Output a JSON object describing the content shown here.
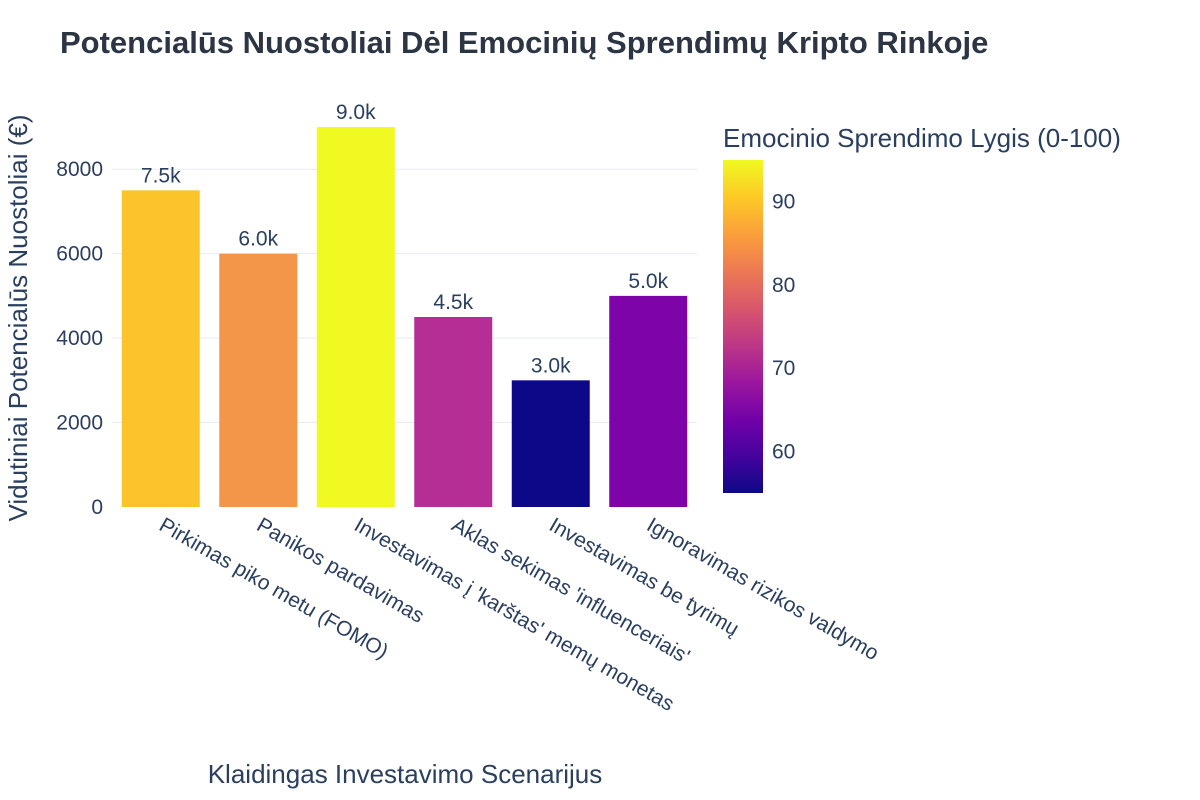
{
  "chart_data": {
    "type": "bar",
    "title": "Potencialūs Nuostoliai Dėl Emocinių Sprendimų Kripto Rinkoje",
    "xlabel": "Klaidingas Investavimo Scenarijus",
    "ylabel": "Vidutiniai Potencialūs Nuostoliai (€)",
    "ylim": [
      0,
      9000
    ],
    "yticks": [
      0,
      2000,
      4000,
      6000,
      8000
    ],
    "grid": true,
    "categories": [
      "Pirkimas piko metu (FOMO)",
      "Panikos pardavimas",
      "Investavimas į 'karštas' memų monetas",
      "Aklas sekimas 'influenceriais'",
      "Investavimas be tyrimų",
      "Ignoravimas rizikos valdymo"
    ],
    "values": [
      7500,
      6000,
      9000,
      4500,
      3000,
      5000
    ],
    "value_labels": [
      "7.5k",
      "6.0k",
      "9.0k",
      "4.5k",
      "3.0k",
      "5.0k"
    ],
    "emotion_levels": [
      90,
      80,
      95,
      70,
      55,
      65
    ],
    "bar_colors": [
      "#fbc42b",
      "#f3964a",
      "#f0f921",
      "#b52e95",
      "#0d0887",
      "#7e03a8"
    ],
    "colorbar": {
      "title": "Emocinio Sprendimo Lygis (0-100)",
      "range": [
        55,
        95
      ],
      "ticks": [
        60,
        70,
        80,
        90
      ],
      "colorscale": [
        "#0d0887",
        "#46039f",
        "#7201a8",
        "#9c179e",
        "#bd3786",
        "#d8576b",
        "#ed7953",
        "#fb9f3a",
        "#fdca26",
        "#f0f921"
      ]
    },
    "legend": "colorbar-right"
  }
}
